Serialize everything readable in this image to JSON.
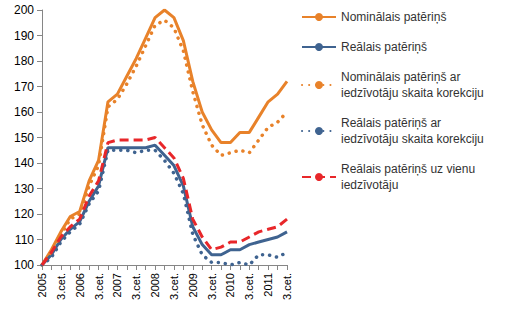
{
  "chart_data": {
    "type": "line",
    "categories": [
      "2005",
      null,
      "3.cet.",
      null,
      "2006",
      null,
      "3.cet.",
      null,
      "2007",
      null,
      "3.cet.",
      null,
      "2008",
      null,
      "3.cet.",
      null,
      "2009",
      null,
      "3.cet.",
      null,
      "2010",
      null,
      "3.cet.",
      null,
      "2011",
      null,
      "3.cet."
    ],
    "series": [
      {
        "name": "Nominālais patēriņš",
        "color": "#e8822a",
        "line_style": "solid",
        "values": [
          100,
          106,
          113,
          119,
          121,
          133,
          141,
          164,
          167,
          174,
          181,
          189,
          197,
          200,
          197,
          188,
          172,
          160,
          153,
          148,
          148,
          152,
          152,
          158,
          164,
          167,
          172
        ]
      },
      {
        "name": "Reālais patēriņš",
        "color": "#3f6390",
        "line_style": "solid",
        "values": [
          100,
          104,
          110,
          114,
          117,
          125,
          131,
          146,
          146,
          146,
          146,
          146,
          147,
          143,
          139,
          131,
          115,
          108,
          104,
          104,
          106,
          106,
          108,
          109,
          110,
          111,
          113
        ]
      },
      {
        "name": "Nominālais patēriņš ar iedzīvotāju skaita korekciju",
        "color": "#e8822a",
        "line_style": "dotted",
        "values": [
          100,
          105,
          112,
          118,
          120,
          131,
          139,
          162,
          165,
          171,
          178,
          186,
          194,
          196,
          193,
          184,
          168,
          155,
          147,
          143,
          144,
          145,
          144,
          149,
          154,
          156,
          160
        ]
      },
      {
        "name": "Reālais patēriņš ar iedzīvotāju skaita korekciju",
        "color": "#3f6390",
        "line_style": "dotted",
        "values": [
          100,
          103,
          109,
          113,
          116,
          124,
          129,
          145,
          145,
          145,
          144,
          145,
          145,
          141,
          136,
          128,
          112,
          104,
          101,
          101,
          100,
          101,
          100,
          104,
          104,
          103,
          105
        ]
      },
      {
        "name": "Reālais patēriņš uz vienu iedzīvotāju",
        "color": "#e8272a",
        "line_style": "dashed",
        "values": [
          100,
          105,
          111,
          115,
          118,
          127,
          133,
          148,
          149,
          149,
          149,
          149,
          150,
          146,
          142,
          134,
          118,
          111,
          106,
          107,
          109,
          109,
          111,
          113,
          114,
          115,
          118
        ]
      }
    ],
    "ylim": [
      100,
      200
    ],
    "yticks": [
      100,
      110,
      120,
      130,
      140,
      150,
      160,
      170,
      180,
      190,
      200
    ],
    "grid": false,
    "legend": "right"
  }
}
